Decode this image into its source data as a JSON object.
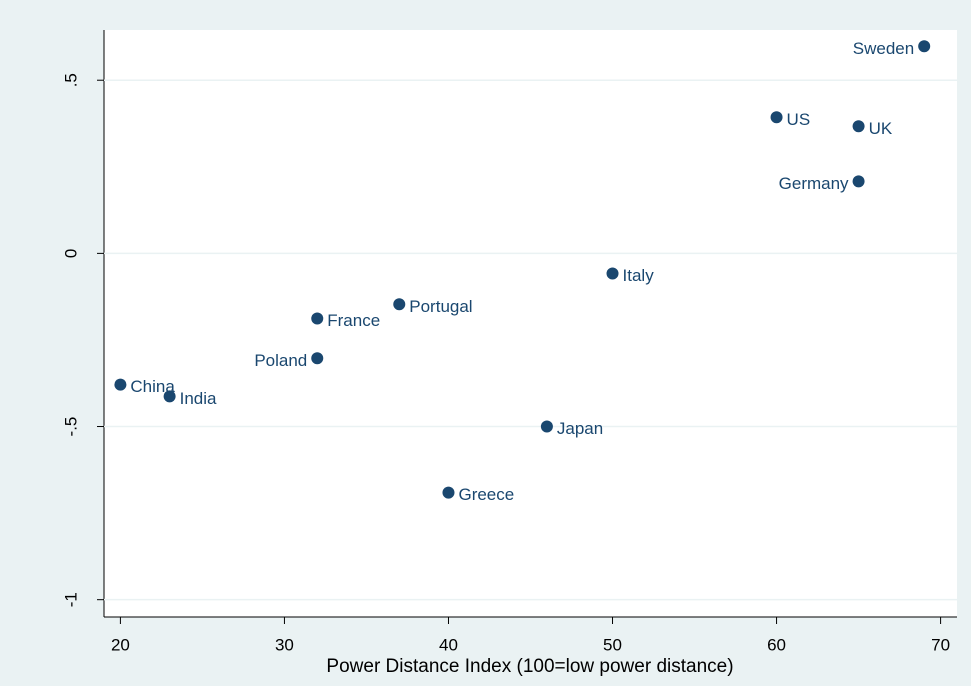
{
  "chart_data": {
    "type": "scatter",
    "x_label": "Power Distance Index (100=low power distance)",
    "labels": [
      "Sweden",
      "US",
      "UK",
      "Germany",
      "Italy",
      "Portugal",
      "France",
      "Poland",
      "China",
      "India",
      "Japan",
      "Greece"
    ],
    "x": [
      69,
      60,
      65,
      65,
      50,
      37,
      32,
      32,
      20,
      23,
      46,
      40
    ],
    "y": [
      0.598,
      0.393,
      0.367,
      0.208,
      -0.058,
      -0.147,
      -0.188,
      -0.303,
      -0.379,
      -0.413,
      -0.5,
      -0.691
    ],
    "color": "#1a476f",
    "xlim": [
      19.0,
      71.0
    ],
    "xticks": [
      20,
      30,
      40,
      50,
      60,
      70
    ],
    "ylim": [
      -1.05,
      0.645
    ],
    "yticks": [
      {
        "value": 0.5,
        "label": ".5"
      },
      0,
      {
        "value": -0.5,
        "label": "-.5"
      },
      -1
    ],
    "grid": true
  }
}
